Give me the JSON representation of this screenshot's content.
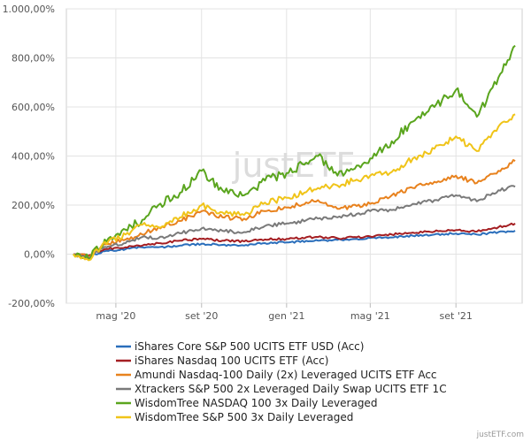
{
  "chart_data": {
    "type": "line",
    "title": "",
    "xlabel": "",
    "ylabel": "",
    "ylim": [
      -200,
      1000
    ],
    "xlim": [
      "2020-02-20",
      "2021-12-05"
    ],
    "y_ticks": [
      -200,
      0,
      200,
      400,
      600,
      800,
      1000
    ],
    "y_tick_labels": [
      "-200,00%",
      "0,00%",
      "200,00%",
      "400,00%",
      "600,00%",
      "800,00%",
      "1.000,00%"
    ],
    "x_ticks": [
      "2020-05-01",
      "2020-09-01",
      "2021-01-01",
      "2021-05-01",
      "2021-09-01"
    ],
    "x_tick_labels": [
      "mag '20",
      "set '20",
      "gen '21",
      "mag '21",
      "set '21"
    ],
    "grid": true,
    "legend_position": "bottom",
    "watermark": "justETF",
    "credit": "justETF.com",
    "series": [
      {
        "name": "iShares Core S&P 500 UCITS ETF USD (Acc)",
        "color": "#2a6ebb",
        "points": [
          [
            "2020-03-01",
            0
          ],
          [
            "2020-03-23",
            -8
          ],
          [
            "2020-04-15",
            12
          ],
          [
            "2020-05-15",
            20
          ],
          [
            "2020-06-08",
            28
          ],
          [
            "2020-07-01",
            28
          ],
          [
            "2020-08-01",
            35
          ],
          [
            "2020-09-01",
            42
          ],
          [
            "2020-10-01",
            38
          ],
          [
            "2020-11-01",
            35
          ],
          [
            "2020-12-01",
            45
          ],
          [
            "2021-01-01",
            48
          ],
          [
            "2021-02-15",
            55
          ],
          [
            "2021-03-15",
            58
          ],
          [
            "2021-05-01",
            66
          ],
          [
            "2021-06-01",
            68
          ],
          [
            "2021-07-01",
            75
          ],
          [
            "2021-08-01",
            80
          ],
          [
            "2021-09-01",
            84
          ],
          [
            "2021-10-01",
            80
          ],
          [
            "2021-11-01",
            90
          ],
          [
            "2021-11-25",
            95
          ]
        ]
      },
      {
        "name": "iShares Nasdaq 100 UCITS ETF (Acc)",
        "color": "#a41e22",
        "points": [
          [
            "2020-03-01",
            0
          ],
          [
            "2020-03-23",
            -5
          ],
          [
            "2020-04-15",
            20
          ],
          [
            "2020-05-15",
            28
          ],
          [
            "2020-06-08",
            35
          ],
          [
            "2020-07-01",
            45
          ],
          [
            "2020-08-01",
            55
          ],
          [
            "2020-09-01",
            62
          ],
          [
            "2020-10-01",
            55
          ],
          [
            "2020-11-01",
            52
          ],
          [
            "2020-12-01",
            60
          ],
          [
            "2021-01-01",
            62
          ],
          [
            "2021-02-15",
            70
          ],
          [
            "2021-03-15",
            65
          ],
          [
            "2021-05-01",
            72
          ],
          [
            "2021-06-01",
            80
          ],
          [
            "2021-07-01",
            88
          ],
          [
            "2021-08-01",
            92
          ],
          [
            "2021-09-01",
            98
          ],
          [
            "2021-10-01",
            92
          ],
          [
            "2021-11-01",
            110
          ],
          [
            "2021-11-25",
            125
          ]
        ]
      },
      {
        "name": "Amundi Nasdaq-100 Daily (2x) Leveraged UCITS ETF Acc",
        "color": "#e8821e",
        "points": [
          [
            "2020-03-01",
            0
          ],
          [
            "2020-03-23",
            -10
          ],
          [
            "2020-04-15",
            40
          ],
          [
            "2020-05-15",
            60
          ],
          [
            "2020-06-08",
            80
          ],
          [
            "2020-07-01",
            110
          ],
          [
            "2020-08-01",
            135
          ],
          [
            "2020-09-01",
            175
          ],
          [
            "2020-10-01",
            150
          ],
          [
            "2020-11-01",
            145
          ],
          [
            "2020-12-01",
            175
          ],
          [
            "2021-01-01",
            190
          ],
          [
            "2021-02-15",
            220
          ],
          [
            "2021-03-15",
            185
          ],
          [
            "2021-05-01",
            205
          ],
          [
            "2021-06-01",
            240
          ],
          [
            "2021-07-01",
            270
          ],
          [
            "2021-08-01",
            295
          ],
          [
            "2021-09-01",
            320
          ],
          [
            "2021-10-01",
            290
          ],
          [
            "2021-11-01",
            340
          ],
          [
            "2021-11-25",
            380
          ]
        ]
      },
      {
        "name": "Xtrackers S&P 500 2x Leveraged Daily Swap UCITS ETF 1C",
        "color": "#7a7a7a",
        "points": [
          [
            "2020-03-01",
            0
          ],
          [
            "2020-03-23",
            -15
          ],
          [
            "2020-04-15",
            30
          ],
          [
            "2020-05-15",
            45
          ],
          [
            "2020-06-08",
            70
          ],
          [
            "2020-07-01",
            65
          ],
          [
            "2020-08-01",
            85
          ],
          [
            "2020-09-01",
            105
          ],
          [
            "2020-10-01",
            95
          ],
          [
            "2020-11-01",
            90
          ],
          [
            "2020-12-01",
            115
          ],
          [
            "2021-01-01",
            125
          ],
          [
            "2021-02-15",
            145
          ],
          [
            "2021-03-15",
            150
          ],
          [
            "2021-05-01",
            175
          ],
          [
            "2021-06-01",
            180
          ],
          [
            "2021-07-01",
            205
          ],
          [
            "2021-08-01",
            220
          ],
          [
            "2021-09-01",
            240
          ],
          [
            "2021-10-01",
            215
          ],
          [
            "2021-11-01",
            260
          ],
          [
            "2021-11-25",
            275
          ]
        ]
      },
      {
        "name": "WisdomTree NASDAQ 100 3x Daily Leveraged",
        "color": "#5aa51e",
        "points": [
          [
            "2020-03-01",
            0
          ],
          [
            "2020-03-23",
            -20
          ],
          [
            "2020-04-15",
            60
          ],
          [
            "2020-05-15",
            100
          ],
          [
            "2020-06-08",
            140
          ],
          [
            "2020-07-01",
            200
          ],
          [
            "2020-08-01",
            250
          ],
          [
            "2020-09-01",
            340
          ],
          [
            "2020-10-01",
            260
          ],
          [
            "2020-11-01",
            240
          ],
          [
            "2020-12-01",
            300
          ],
          [
            "2021-01-01",
            330
          ],
          [
            "2021-02-15",
            400
          ],
          [
            "2021-03-15",
            320
          ],
          [
            "2021-05-01",
            390
          ],
          [
            "2021-06-01",
            460
          ],
          [
            "2021-07-01",
            540
          ],
          [
            "2021-08-01",
            600
          ],
          [
            "2021-09-01",
            670
          ],
          [
            "2021-10-01",
            560
          ],
          [
            "2021-11-01",
            720
          ],
          [
            "2021-11-25",
            850
          ]
        ]
      },
      {
        "name": "WisdomTree S&P 500 3x Daily Leveraged",
        "color": "#f0c419",
        "points": [
          [
            "2020-03-01",
            0
          ],
          [
            "2020-03-23",
            -25
          ],
          [
            "2020-04-15",
            50
          ],
          [
            "2020-05-15",
            80
          ],
          [
            "2020-06-08",
            120
          ],
          [
            "2020-07-01",
            110
          ],
          [
            "2020-08-01",
            150
          ],
          [
            "2020-09-01",
            200
          ],
          [
            "2020-10-01",
            170
          ],
          [
            "2020-11-01",
            160
          ],
          [
            "2020-12-01",
            210
          ],
          [
            "2021-01-01",
            230
          ],
          [
            "2021-02-15",
            270
          ],
          [
            "2021-03-15",
            280
          ],
          [
            "2021-05-01",
            320
          ],
          [
            "2021-06-01",
            335
          ],
          [
            "2021-07-01",
            390
          ],
          [
            "2021-08-01",
            430
          ],
          [
            "2021-09-01",
            480
          ],
          [
            "2021-10-01",
            420
          ],
          [
            "2021-11-01",
            520
          ],
          [
            "2021-11-25",
            570
          ]
        ]
      }
    ]
  }
}
